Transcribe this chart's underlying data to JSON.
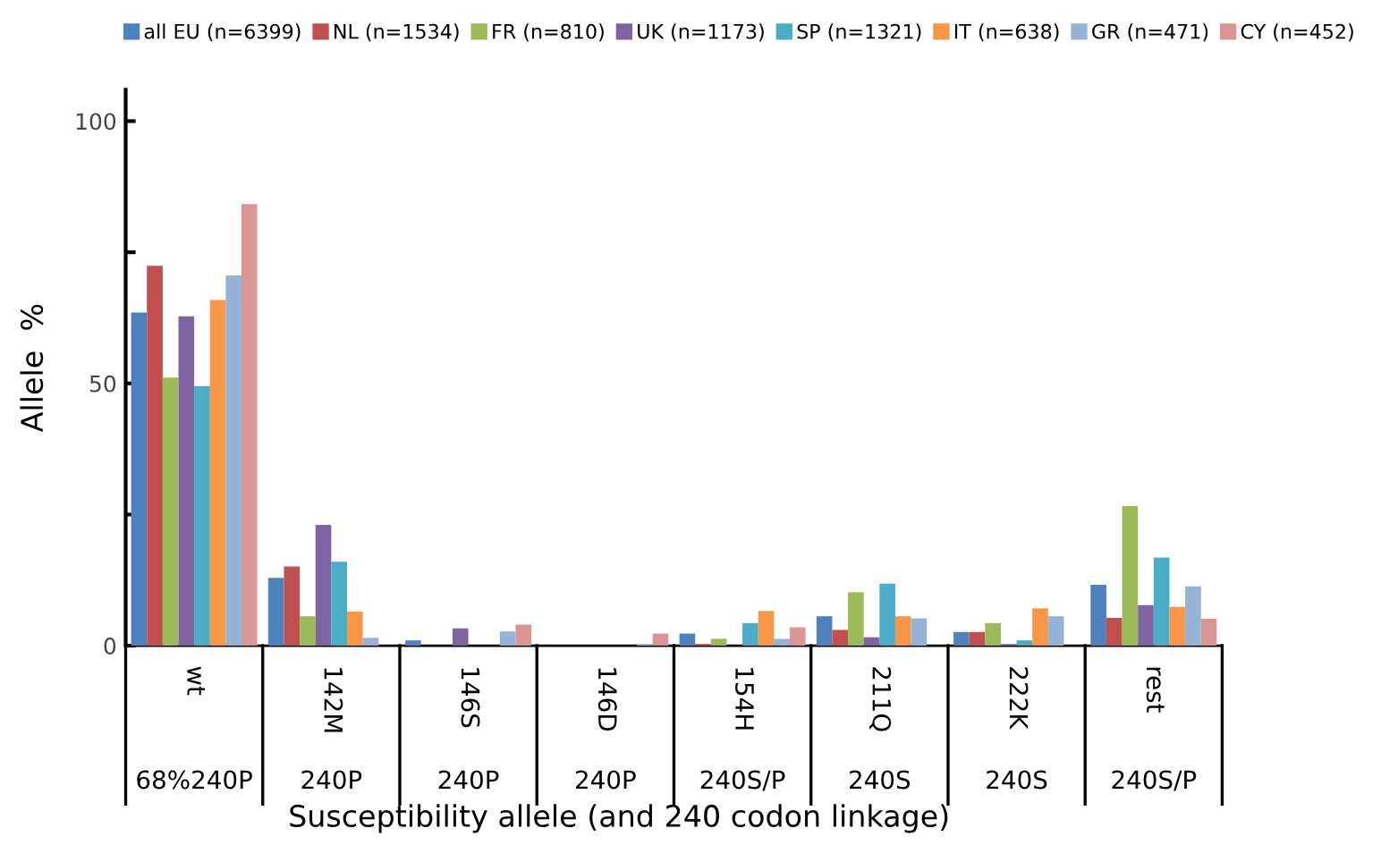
{
  "chart_data": {
    "type": "bar",
    "xlabel": "Susceptibility allele (and 240 codon linkage)",
    "ylabel": "Allele  %",
    "categories": [
      "wt",
      "142M",
      "146S",
      "146D",
      "154H",
      "211Q",
      "222K",
      "rest"
    ],
    "annotations": [
      "68%240P",
      "240P",
      "240P",
      "240P",
      "240S/P",
      "240S",
      "240S",
      "240S/P"
    ],
    "series": [
      {
        "name": "all EU (n=6399)",
        "color": "#4f81bd",
        "values": [
          63.5,
          12.9,
          1.0,
          0,
          2.3,
          5.6,
          2.6,
          11.6
        ]
      },
      {
        "name": "NL (n=1534)",
        "color": "#c0504d",
        "values": [
          72.4,
          15.1,
          0,
          0,
          0.3,
          3.0,
          2.6,
          5.3
        ]
      },
      {
        "name": "FR (n=810)",
        "color": "#9bbb59",
        "values": [
          51.1,
          5.6,
          0,
          0,
          1.3,
          10.2,
          4.3,
          26.6
        ]
      },
      {
        "name": "UK (n=1173)",
        "color": "#8064a2",
        "values": [
          62.8,
          23.0,
          3.3,
          0,
          0,
          1.6,
          0.3,
          7.7
        ]
      },
      {
        "name": "SP (n=1321)",
        "color": "#4bacc6",
        "values": [
          49.5,
          16.0,
          0,
          0,
          4.3,
          11.8,
          1.0,
          16.8
        ]
      },
      {
        "name": "IT (n=638)",
        "color": "#f79646",
        "values": [
          65.9,
          6.5,
          0,
          0,
          6.6,
          5.6,
          7.1,
          7.4
        ]
      },
      {
        "name": "GR (n=471)",
        "color": "#95b3d7",
        "values": [
          70.6,
          1.5,
          2.7,
          0.3,
          1.3,
          5.2,
          5.6,
          11.3
        ]
      },
      {
        "name": "CY (n=452)",
        "color": "#d99694",
        "values": [
          84.2,
          0,
          4.0,
          2.3,
          3.5,
          0,
          0,
          5.1
        ]
      }
    ],
    "ylim": [
      0,
      106
    ],
    "yticks": [
      0,
      {
        "value": 25,
        "label": null
      },
      50,
      {
        "value": 75,
        "label": null
      },
      100
    ],
    "grid": false,
    "legend": "top"
  }
}
